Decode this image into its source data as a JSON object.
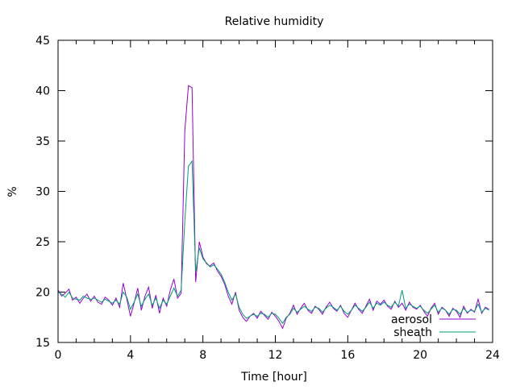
{
  "chart_data": {
    "type": "line",
    "title": "Relative humidity",
    "xlabel": "Time [hour]",
    "ylabel": "%",
    "xlim": [
      0,
      24
    ],
    "ylim": [
      15,
      45
    ],
    "xticks": [
      0,
      4,
      8,
      12,
      16,
      20,
      24
    ],
    "yticks": [
      15,
      20,
      25,
      30,
      35,
      40,
      45
    ],
    "x_minor_step": 1,
    "grid": false,
    "legend": "bottom-right",
    "x_step": 0.2,
    "series": [
      {
        "name": "aerosol",
        "color": "#9400d3",
        "values": [
          20.2,
          19.6,
          19.9,
          20.3,
          19.2,
          19.5,
          18.9,
          19.4,
          19.8,
          19.1,
          19.6,
          19.0,
          18.8,
          19.5,
          19.2,
          18.7,
          19.4,
          18.5,
          20.9,
          19.3,
          17.6,
          18.9,
          20.4,
          18.2,
          19.6,
          20.5,
          18.4,
          19.7,
          17.9,
          19.4,
          18.6,
          20.2,
          21.3,
          19.4,
          19.9,
          36.0,
          40.5,
          40.3,
          21.0,
          25.0,
          23.5,
          22.8,
          22.6,
          22.9,
          22.1,
          21.6,
          20.8,
          19.6,
          18.8,
          20.0,
          18.2,
          17.5,
          17.1,
          17.6,
          17.9,
          17.4,
          18.1,
          17.7,
          17.3,
          18.0,
          17.6,
          17.1,
          16.4,
          17.4,
          17.9,
          18.7,
          17.8,
          18.4,
          18.9,
          18.2,
          17.9,
          18.6,
          18.3,
          17.8,
          18.5,
          19.0,
          18.4,
          18.1,
          18.7,
          17.9,
          17.5,
          18.2,
          18.9,
          18.3,
          17.9,
          18.6,
          19.3,
          18.2,
          19.1,
          18.8,
          19.2,
          18.6,
          18.3,
          19.1,
          18.5,
          18.9,
          18.2,
          19.0,
          18.5,
          18.3,
          18.7,
          18.1,
          17.6,
          18.4,
          18.9,
          17.8,
          18.5,
          18.2,
          17.6,
          18.4,
          18.1,
          17.5,
          18.6,
          17.9,
          18.3,
          18.0,
          19.3,
          17.9,
          18.5,
          18.3
        ]
      },
      {
        "name": "sheath",
        "color": "#009e73",
        "values": [
          20.0,
          19.8,
          19.5,
          20.0,
          19.4,
          19.3,
          19.2,
          19.6,
          19.4,
          19.3,
          19.4,
          19.2,
          19.0,
          19.3,
          19.1,
          18.9,
          19.2,
          18.8,
          20.0,
          19.5,
          18.3,
          19.0,
          19.8,
          18.6,
          19.3,
          19.8,
          18.7,
          19.4,
          18.4,
          19.2,
          18.8,
          19.6,
          20.4,
          19.6,
          20.2,
          27.0,
          32.5,
          33.0,
          22.0,
          24.4,
          23.3,
          22.9,
          22.5,
          22.7,
          22.3,
          21.8,
          21.0,
          20.0,
          19.2,
          19.8,
          18.5,
          17.8,
          17.4,
          17.6,
          17.8,
          17.6,
          17.9,
          17.8,
          17.5,
          17.9,
          17.8,
          17.4,
          16.9,
          17.5,
          17.8,
          18.4,
          18.0,
          18.3,
          18.6,
          18.3,
          18.1,
          18.5,
          18.4,
          18.0,
          18.4,
          18.7,
          18.5,
          18.2,
          18.6,
          18.1,
          17.8,
          18.2,
          18.7,
          18.4,
          18.1,
          18.5,
          19.0,
          18.4,
          18.9,
          18.7,
          19.0,
          18.7,
          18.5,
          19.0,
          18.6,
          20.2,
          18.4,
          18.8,
          18.6,
          18.4,
          18.6,
          18.2,
          17.9,
          18.3,
          18.7,
          18.0,
          18.4,
          18.2,
          17.8,
          18.3,
          18.2,
          17.8,
          18.4,
          18.0,
          18.2,
          18.1,
          18.8,
          18.0,
          18.4,
          18.2
        ]
      }
    ]
  }
}
